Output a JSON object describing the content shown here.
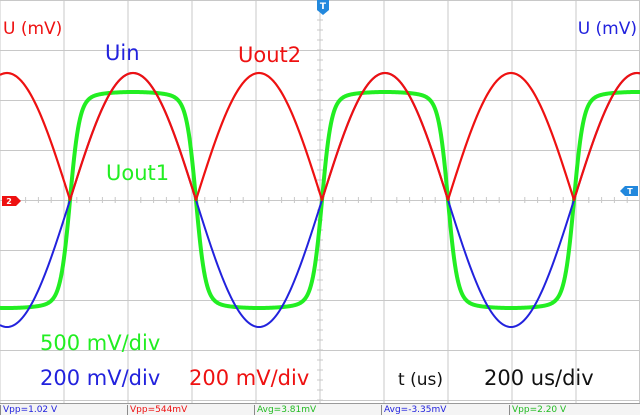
{
  "colors": {
    "ch_in": "#2222dd",
    "ch_out1": "#22ee22",
    "ch_out2": "#ee1111",
    "grid": "#c8c8c8",
    "trigger": "#2288dd",
    "text_dark": "#111111"
  },
  "axis_left_label": "U (mV)",
  "axis_right_label": "U (mV)",
  "time_axis_label": "t (us)",
  "traces": {
    "uin": "Uin",
    "uout1": "Uout1",
    "uout2": "Uout2"
  },
  "scales": {
    "green": "500 mV/div",
    "blue": "200 mV/div",
    "red": "200 mV/div",
    "time": "200 us/div"
  },
  "markers": {
    "trigger_top": "T",
    "ground_left": "2",
    "trigger_right": "T"
  },
  "measurements": [
    {
      "text": "Vpp=1.02 V",
      "color": "#2222dd"
    },
    {
      "text": "Vpp=544mV",
      "color": "#ee1111"
    },
    {
      "text": "Avg=3.81mV",
      "color": "#22bb22"
    },
    {
      "text": "Avg=-3.35mV",
      "color": "#2222dd"
    },
    {
      "text": "Vpp=2.20 V",
      "color": "#22bb22"
    }
  ]
}
